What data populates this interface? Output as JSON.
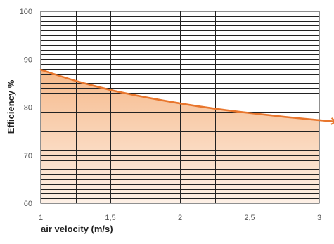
{
  "chart_data": {
    "type": "area",
    "title": "",
    "xlabel": "air velocity (m/s)",
    "ylabel": "Efficiency %",
    "xlim": [
      1,
      3
    ],
    "ylim": [
      60,
      100
    ],
    "x_ticks": [
      1,
      1.5,
      2,
      2.5,
      3
    ],
    "x_tick_labels": [
      "1",
      "1,5",
      "2",
      "2,5",
      "3"
    ],
    "y_ticks": [
      60,
      70,
      80,
      90,
      100
    ],
    "y_tick_labels": [
      "60",
      "70",
      "80",
      "90",
      "100"
    ],
    "grid": true,
    "vertical_grid_step": 0.25,
    "horizontal_grid_step": 1,
    "series": [
      {
        "x": [
          1,
          1.25,
          1.5,
          1.75,
          2,
          2.25,
          2.5,
          2.75,
          3
        ],
        "y": [
          87.8,
          85.5,
          83.6,
          82.1,
          80.8,
          79.7,
          78.8,
          78.0,
          77.3
        ],
        "extends_beyond_axis_to": {
          "x": 3.12,
          "y": 77.0
        }
      }
    ],
    "colors": {
      "line": "#e8762d",
      "fill_top": "#f6b98a",
      "fill_bottom": "#fdf0e6",
      "grid": "#222222"
    }
  }
}
